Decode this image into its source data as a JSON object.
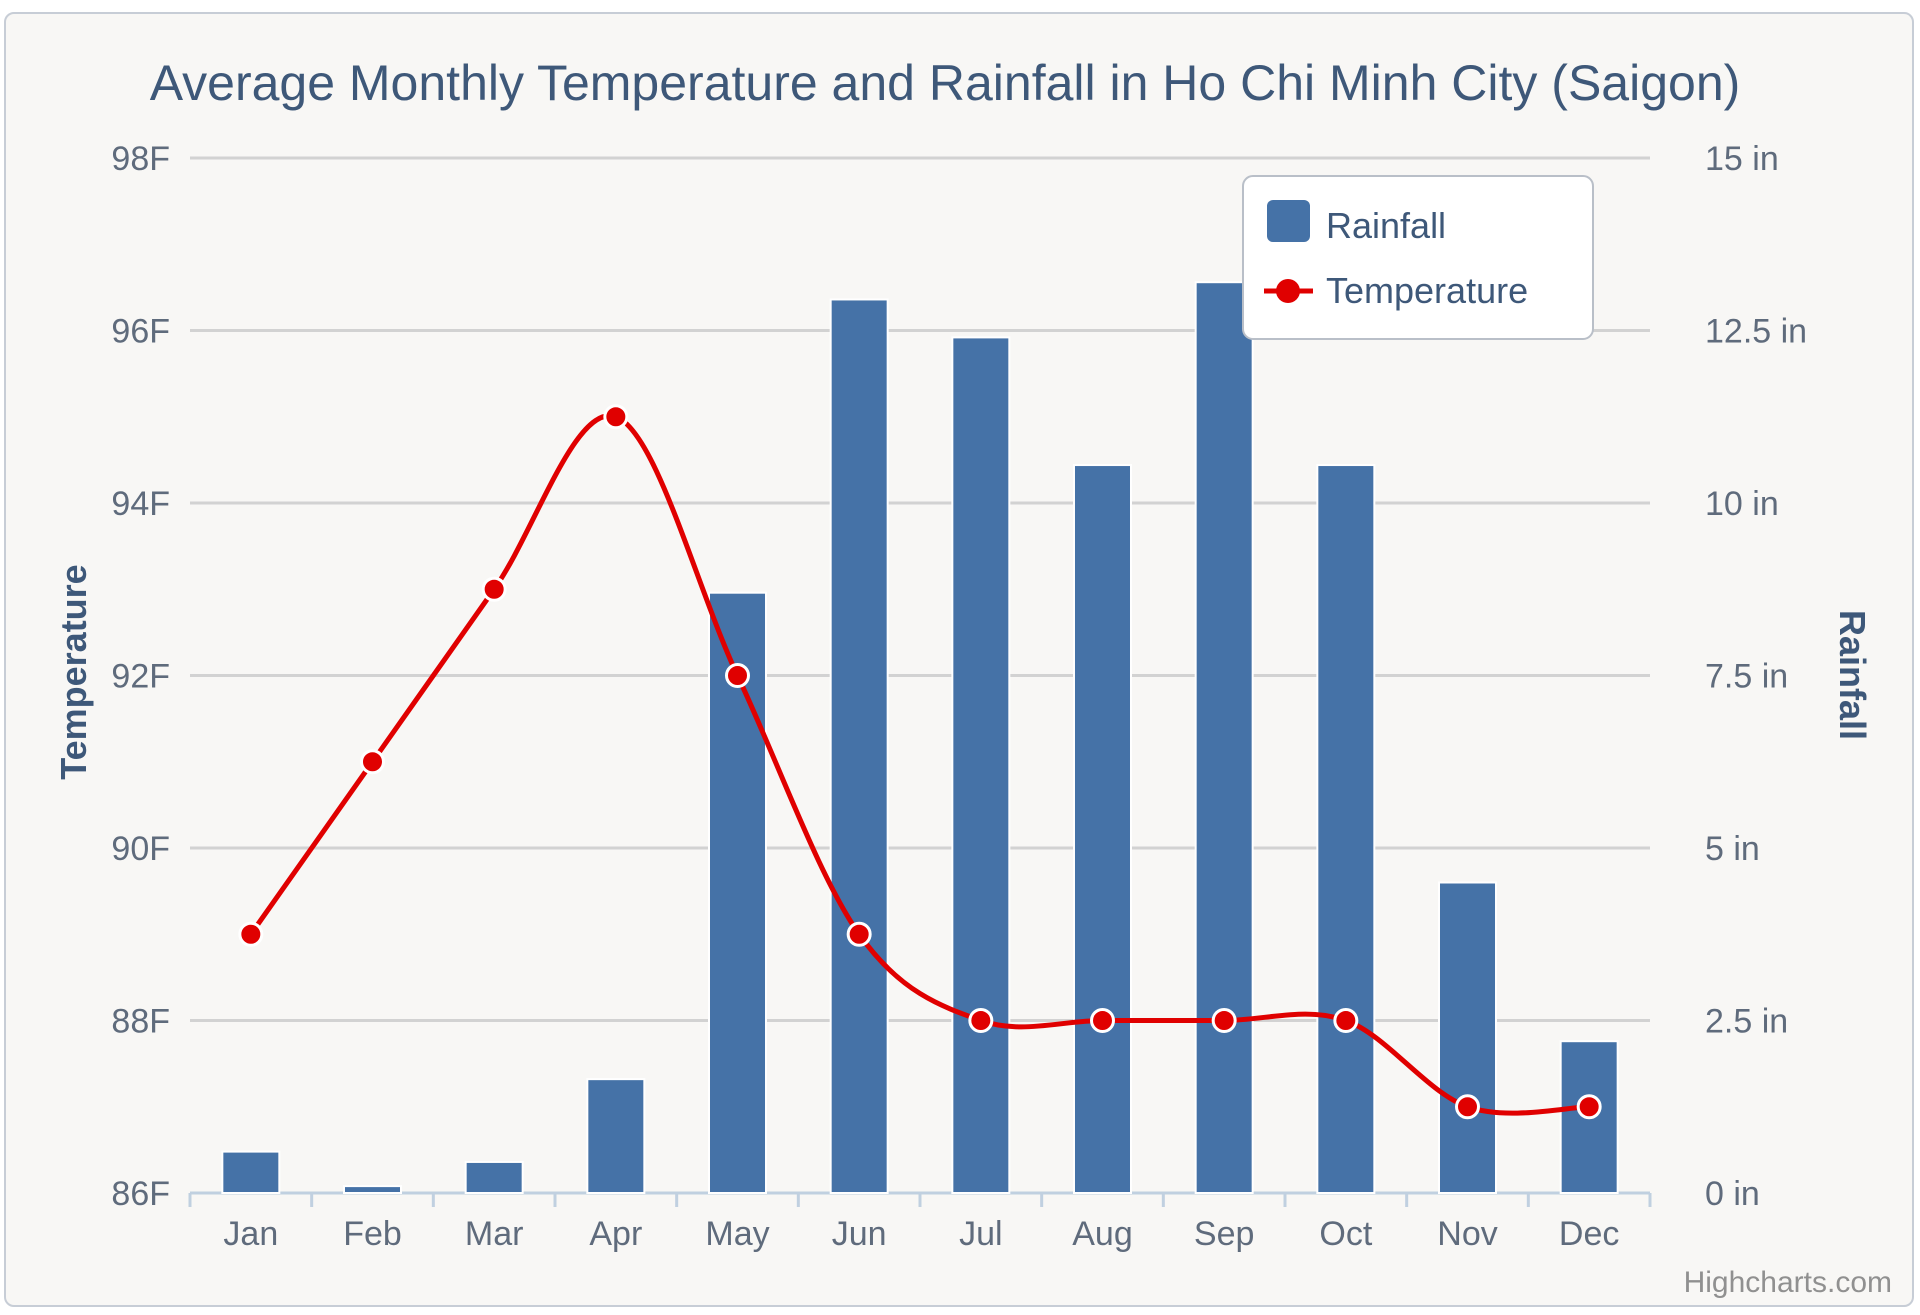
{
  "chart_data": {
    "type": "bar+line",
    "title": "Average Monthly Temperature and Rainfall in Ho Chi Minh City (Saigon)",
    "categories": [
      "Jan",
      "Feb",
      "Mar",
      "Apr",
      "May",
      "Jun",
      "Jul",
      "Aug",
      "Sep",
      "Oct",
      "Nov",
      "Dec"
    ],
    "y_left": {
      "title": "Temperature",
      "min": 86,
      "max": 98,
      "ticks": [
        98,
        96,
        94,
        92,
        90,
        88,
        86
      ],
      "tick_labels": [
        "98F",
        "96F",
        "94F",
        "92F",
        "90F",
        "88F",
        "86F"
      ]
    },
    "y_right": {
      "title": "Rainfall",
      "min": 0,
      "max": 15,
      "ticks": [
        15,
        12.5,
        10,
        7.5,
        5,
        2.5,
        0
      ],
      "tick_labels": [
        "15 in",
        "12.5 in",
        "10 in",
        "7.5 in",
        "5 in",
        "2.5 in",
        "0 in"
      ]
    },
    "series": [
      {
        "name": "Rainfall",
        "type": "column",
        "axis": "right",
        "color": "#4572a7",
        "values": [
          0.6,
          0.1,
          0.45,
          1.65,
          8.7,
          12.95,
          12.4,
          10.55,
          13.2,
          10.55,
          4.5,
          2.2
        ]
      },
      {
        "name": "Temperature",
        "type": "spline",
        "axis": "left",
        "color": "#e00000",
        "values": [
          89,
          91,
          93,
          95,
          92,
          89,
          88,
          88,
          88,
          88,
          87,
          87
        ]
      }
    ],
    "legend_position": "top-right",
    "grid": true
  },
  "credits": "Highcharts.com"
}
